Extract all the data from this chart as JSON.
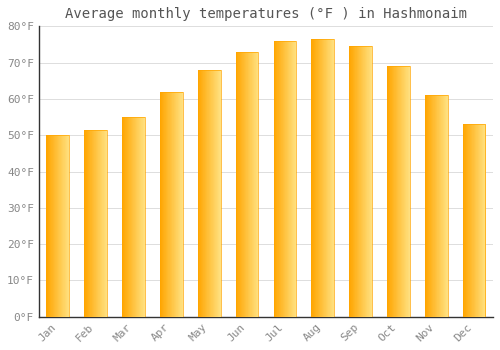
{
  "title": "Average monthly temperatures (°F ) in Hashmonaim",
  "months": [
    "Jan",
    "Feb",
    "Mar",
    "Apr",
    "May",
    "Jun",
    "Jul",
    "Aug",
    "Sep",
    "Oct",
    "Nov",
    "Dec"
  ],
  "values": [
    50,
    51.5,
    55,
    62,
    68,
    73,
    76,
    76.5,
    74.5,
    69,
    61,
    53
  ],
  "bar_color_main": "#FFA500",
  "bar_color_light": "#FFD966",
  "background_color": "#FFFFFF",
  "grid_color": "#DDDDDD",
  "text_color": "#888888",
  "ylim": [
    0,
    80
  ],
  "ytick_step": 10,
  "title_fontsize": 10,
  "tick_fontsize": 8
}
